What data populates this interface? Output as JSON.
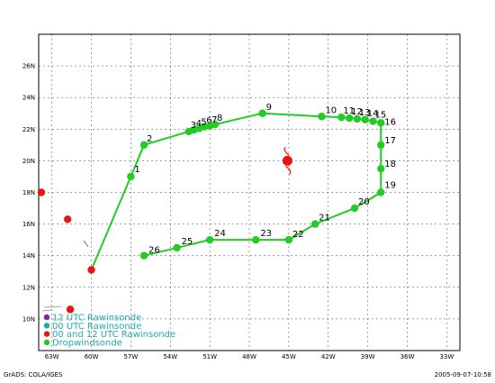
{
  "map": {
    "lon_labels": [
      "63W",
      "60W",
      "57W",
      "54W",
      "51W",
      "48W",
      "45W",
      "42W",
      "39W",
      "36W",
      "33W"
    ],
    "lat_labels": [
      "10N",
      "12N",
      "14N",
      "16N",
      "18N",
      "20N",
      "22N",
      "24N",
      "26N"
    ],
    "lon_range": [
      -64,
      -32
    ],
    "lat_range": [
      8,
      28
    ]
  },
  "track": {
    "color": "#22cc22",
    "points": [
      {
        "label": "",
        "lon": -60.0,
        "lat": 13.1
      },
      {
        "label": "1",
        "lon": -57.0,
        "lat": 19.0
      },
      {
        "label": "2",
        "lon": -56.0,
        "lat": 21.0
      },
      {
        "label": "3",
        "lon": -52.6,
        "lat": 21.85
      },
      {
        "label": "4",
        "lon": -52.2,
        "lat": 21.95
      },
      {
        "label": "5",
        "lon": -51.8,
        "lat": 22.05
      },
      {
        "label": "6",
        "lon": -51.4,
        "lat": 22.15
      },
      {
        "label": "7",
        "lon": -51.0,
        "lat": 22.2
      },
      {
        "label": "8",
        "lon": -50.6,
        "lat": 22.3
      },
      {
        "label": "9",
        "lon": -47.0,
        "lat": 23.0
      },
      {
        "label": "10",
        "lon": -42.5,
        "lat": 22.8
      },
      {
        "label": "11",
        "lon": -41.0,
        "lat": 22.75
      },
      {
        "label": "12",
        "lon": -40.4,
        "lat": 22.7
      },
      {
        "label": "13",
        "lon": -39.8,
        "lat": 22.65
      },
      {
        "label": "14",
        "lon": -39.2,
        "lat": 22.6
      },
      {
        "label": "15",
        "lon": -38.6,
        "lat": 22.5
      },
      {
        "label": "16",
        "lon": -38.0,
        "lat": 22.4
      },
      {
        "label": "17",
        "lon": -38.0,
        "lat": 21.0
      },
      {
        "label": "18",
        "lon": -38.0,
        "lat": 19.5
      },
      {
        "label": "19",
        "lon": -38.0,
        "lat": 18.0
      },
      {
        "label": "20",
        "lon": -40.0,
        "lat": 17.0
      },
      {
        "label": "21",
        "lon": -43.0,
        "lat": 16.0
      },
      {
        "label": "22",
        "lon": -45.0,
        "lat": 15.0
      },
      {
        "label": "23",
        "lon": -47.5,
        "lat": 15.0
      },
      {
        "label": "24",
        "lon": -51.0,
        "lat": 15.0
      },
      {
        "label": "25",
        "lon": -53.5,
        "lat": 14.5
      },
      {
        "label": "26",
        "lon": -56.0,
        "lat": 14.0
      }
    ]
  },
  "rawinsondes": {
    "color": "#ee1111",
    "points": [
      {
        "lon": -63.8,
        "lat": 18.0
      },
      {
        "lon": -61.8,
        "lat": 16.3
      },
      {
        "lon": -61.6,
        "lat": 10.6
      }
    ]
  },
  "storm": {
    "lon": -45.1,
    "lat": 20.0,
    "color": "#ee1111"
  },
  "legend": [
    {
      "label": "12 UTC Rawinsonde",
      "color": "#8822aa"
    },
    {
      "label": "00 UTC Rawinsonde",
      "color": "#22aaaa"
    },
    {
      "label": "00 and 12 UTC Rawinsonde",
      "color": "#ee1111"
    },
    {
      "label": "Dropwindsonde",
      "color": "#22cc22"
    }
  ],
  "legend_text_color": "#22aaaa",
  "footer": {
    "left": "GrADS: COLA/IGES",
    "right": "2005-09-07-10:58"
  }
}
